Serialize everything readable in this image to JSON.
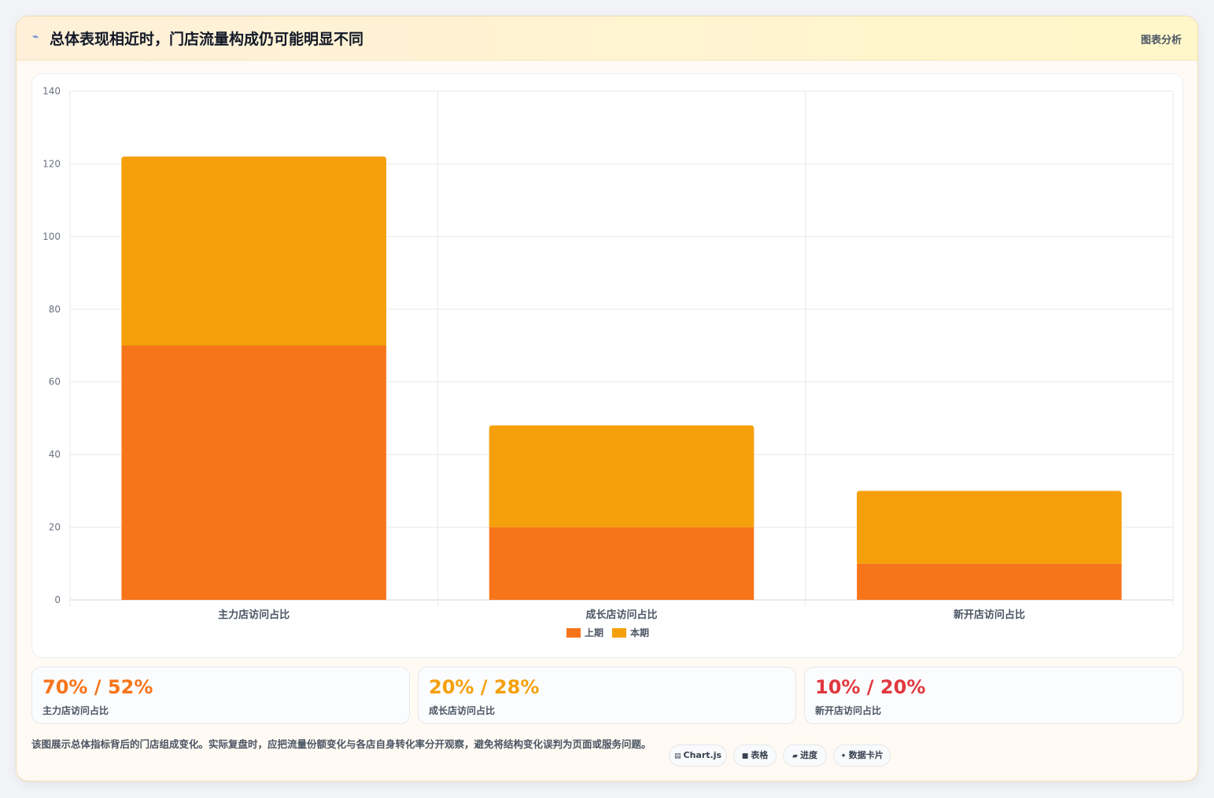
{
  "header": {
    "icon": "pulse-icon",
    "icon_glyph": "⌁",
    "title": "总体表现相近时，门店流量构成仍可能明显不同",
    "tag": "图表分析"
  },
  "chart_data": {
    "type": "bar",
    "stacked": true,
    "categories": [
      "主力店访问占比",
      "成长店访问占比",
      "新开店访问占比"
    ],
    "series": [
      {
        "name": "上期",
        "values": [
          70,
          20,
          10
        ],
        "color": "#f7751a"
      },
      {
        "name": "本期",
        "values": [
          52,
          28,
          20
        ],
        "color": "#f5a00b"
      }
    ],
    "ylim": [
      0,
      140
    ],
    "yticks": [
      0,
      20,
      40,
      60,
      80,
      100,
      120,
      140
    ],
    "title": "",
    "xlabel": "",
    "ylabel": "",
    "grid": true,
    "legend": "bottom-center"
  },
  "stats": [
    {
      "value": "70% / 52%",
      "label": "主力店访问占比",
      "color": "#f7751a"
    },
    {
      "value": "20% / 28%",
      "label": "成长店访问占比",
      "color": "#f5a00b"
    },
    {
      "value": "10% / 20%",
      "label": "新开店访问占比",
      "color": "#e0383e"
    }
  ],
  "note": "该图展示总体指标背后的门店组成变化。实际复盘时，应把流量份额变化与各店自身转化率分开观察，避免将结构变化误判为页面或服务问题。",
  "chips": [
    {
      "icon": "chart-icon",
      "glyph": "▤",
      "label": "Chart.js"
    },
    {
      "icon": "table-icon",
      "glyph": "■",
      "label": "表格"
    },
    {
      "icon": "progress-icon",
      "glyph": "▰",
      "label": "进度"
    },
    {
      "icon": "sparkle-icon",
      "glyph": "✦",
      "label": "数据卡片"
    }
  ]
}
